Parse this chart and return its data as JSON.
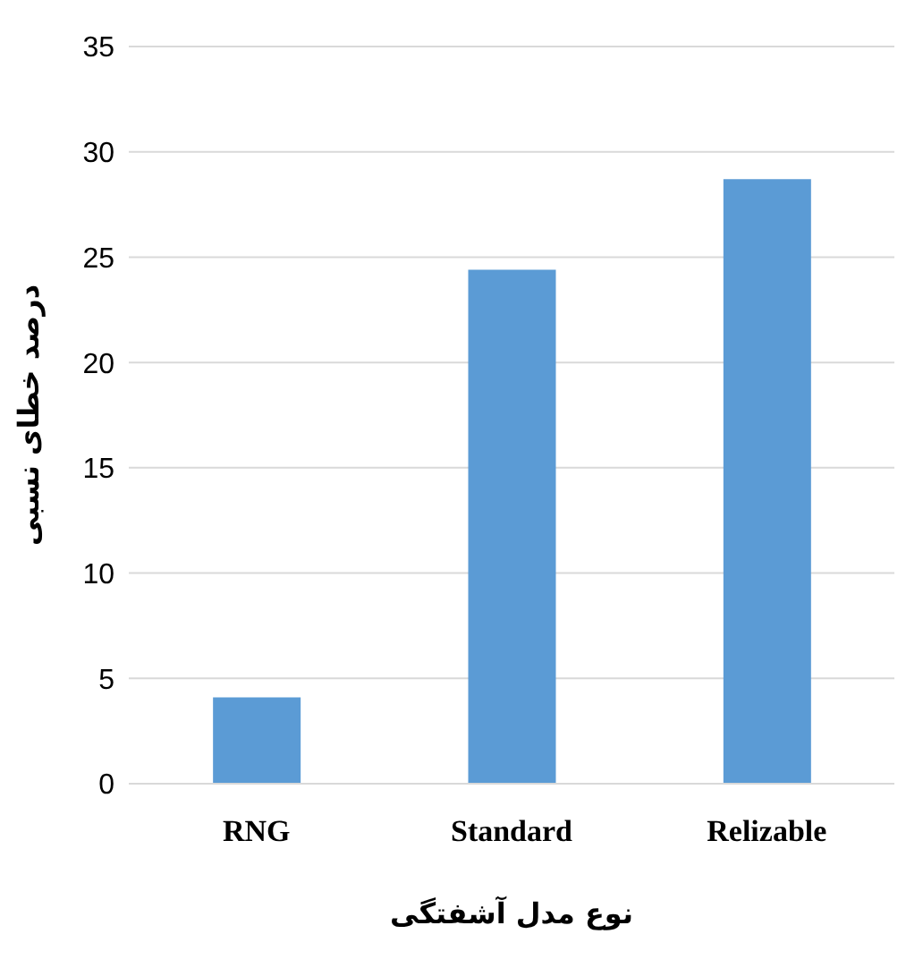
{
  "chart_data": {
    "type": "bar",
    "xlabel": "نوع مدل آشفتگی",
    "ylabel": "درصد خطای نسبی",
    "categories": [
      "RNG",
      "Standard",
      "Relizable"
    ],
    "values": [
      4.1,
      24.4,
      28.7
    ],
    "color": "#5b9bd5",
    "ylim": [
      0,
      35
    ],
    "yticks": [
      0,
      5,
      10,
      15,
      20,
      25,
      30,
      35
    ],
    "grid": "y"
  }
}
